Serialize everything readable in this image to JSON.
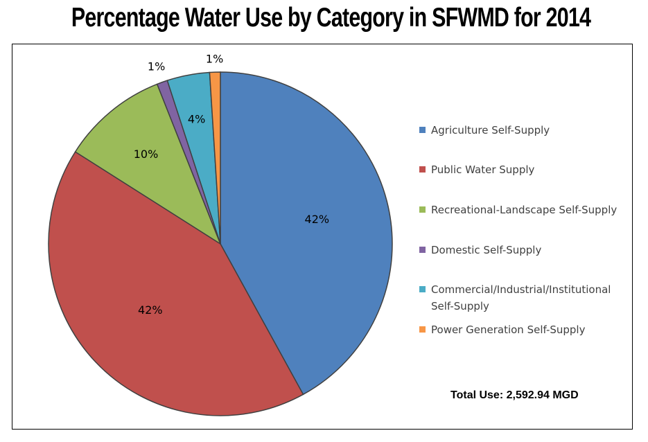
{
  "chart_data": {
    "type": "pie",
    "title": "Percentage Water Use by Category in SFWMD for 2014",
    "legend_position": "right",
    "slices": [
      {
        "name": "Agriculture Self-Supply",
        "value": 42,
        "label": "42%",
        "color": "#4F81BD"
      },
      {
        "name": "Public Water Supply",
        "value": 42,
        "label": "42%",
        "color": "#C0504D"
      },
      {
        "name": "Recreational-Landscape Self-Supply",
        "value": 10,
        "label": "10%",
        "color": "#9BBB59"
      },
      {
        "name": "Domestic Self-Supply",
        "value": 1,
        "label": "1%",
        "color": "#8064A2"
      },
      {
        "name": "Commercial/Industrial/Institutional Self-Supply",
        "value": 4,
        "label": "4%",
        "color": "#4BACC6"
      },
      {
        "name": "Power Generation Self-Supply",
        "value": 1,
        "label": "1%",
        "color": "#F79646"
      }
    ],
    "annotation": "Total Use: 2,592.94 MGD"
  },
  "legend": {
    "items": [
      {
        "label_lines": [
          "Agriculture Self-Supply"
        ]
      },
      {
        "label_lines": [
          "Public Water Supply"
        ]
      },
      {
        "label_lines": [
          "Recreational-Landscape Self-Supply"
        ]
      },
      {
        "label_lines": [
          "Domestic Self-Supply"
        ]
      },
      {
        "label_lines": [
          "Commercial/Industrial/Institutional",
          "Self-Supply"
        ]
      },
      {
        "label_lines": [
          "Power Generation Self-Supply"
        ]
      }
    ]
  }
}
